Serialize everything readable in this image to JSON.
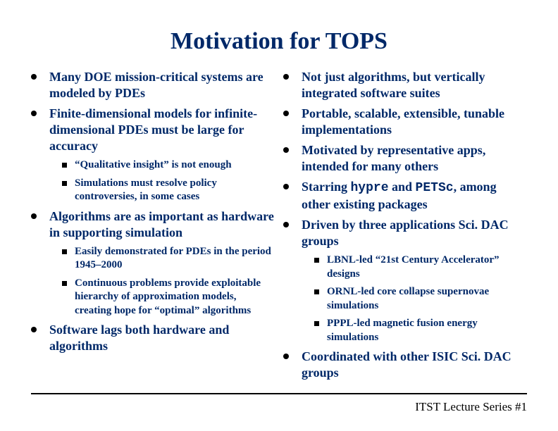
{
  "colors": {
    "title": "#002868",
    "body": "#002868",
    "footer": "#000000",
    "bullet": "#000000",
    "background": "#ffffff"
  },
  "title": "Motivation for TOPS",
  "left": [
    {
      "text": "Many DOE mission-critical systems are modeled by PDEs"
    },
    {
      "text": "Finite-dimensional models for infinite-dimensional PDEs must be large for accuracy",
      "sub": [
        "“Qualitative insight” is not enough",
        "Simulations must resolve policy controversies, in some cases"
      ]
    },
    {
      "text": "Algorithms are as important as hardware in supporting simulation",
      "sub": [
        "Easily demonstrated for PDEs in the period 1945–2000",
        "Continuous problems provide exploitable hierarchy of approximation models, creating hope for “optimal” algorithms"
      ]
    },
    {
      "text": "Software lags both hardware and algorithms"
    }
  ],
  "right": [
    {
      "text": "Not just algorithms, but vertically integrated software suites"
    },
    {
      "text": "Portable, scalable, extensible, tunable implementations"
    },
    {
      "text": "Motivated by representative apps, intended for many others"
    },
    {
      "html": "Starring <span class=\"mono\">hypre</span> and <span class=\"mono\">PETSc</span>, among other existing packages"
    },
    {
      "text": "Driven by three applications Sci. DAC groups",
      "sub": [
        "LBNL-led “21st Century Accelerator” designs",
        "ORNL-led core collapse supernovae simulations",
        "PPPL-led magnetic fusion energy simulations"
      ]
    },
    {
      "text": "Coordinated with other ISIC Sci. DAC groups"
    }
  ],
  "footer": "ITST Lecture Series #1"
}
